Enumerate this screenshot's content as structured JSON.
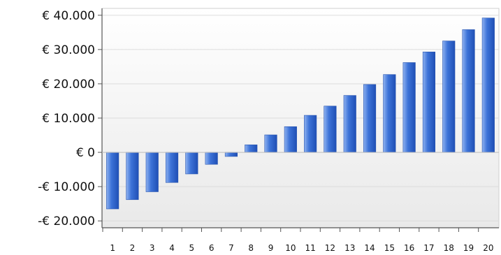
{
  "chart_data": {
    "type": "bar",
    "categories": [
      "1",
      "2",
      "3",
      "4",
      "5",
      "6",
      "7",
      "8",
      "9",
      "10",
      "11",
      "12",
      "13",
      "14",
      "15",
      "16",
      "17",
      "18",
      "19",
      "20"
    ],
    "values": [
      -16500,
      -13800,
      -11500,
      -8800,
      -6300,
      -3500,
      -1200,
      2200,
      5100,
      7500,
      10800,
      13500,
      16600,
      19800,
      22700,
      26200,
      29300,
      32500,
      35800,
      39200
    ],
    "ylim": [
      -22000,
      42000
    ],
    "yticks": [
      -20000,
      -10000,
      0,
      10000,
      20000,
      30000,
      40000
    ],
    "ytick_labels": [
      "-€ 20.000",
      "-€ 10.000",
      "€ 0",
      "€ 10.000",
      "€ 20.000",
      "€ 30.000",
      "€ 40.000"
    ],
    "grid": true,
    "title": "",
    "xlabel": "",
    "ylabel": "",
    "colors": {
      "bar_light": "#8fb2f0",
      "bar_mid": "#3d73d8",
      "bar_dark": "#1f4fb5",
      "grid": "#dcdcdc",
      "axis": "#555555",
      "plot_bg_top": "#ffffff",
      "plot_bg_bottom": "#e9e9e9"
    }
  }
}
